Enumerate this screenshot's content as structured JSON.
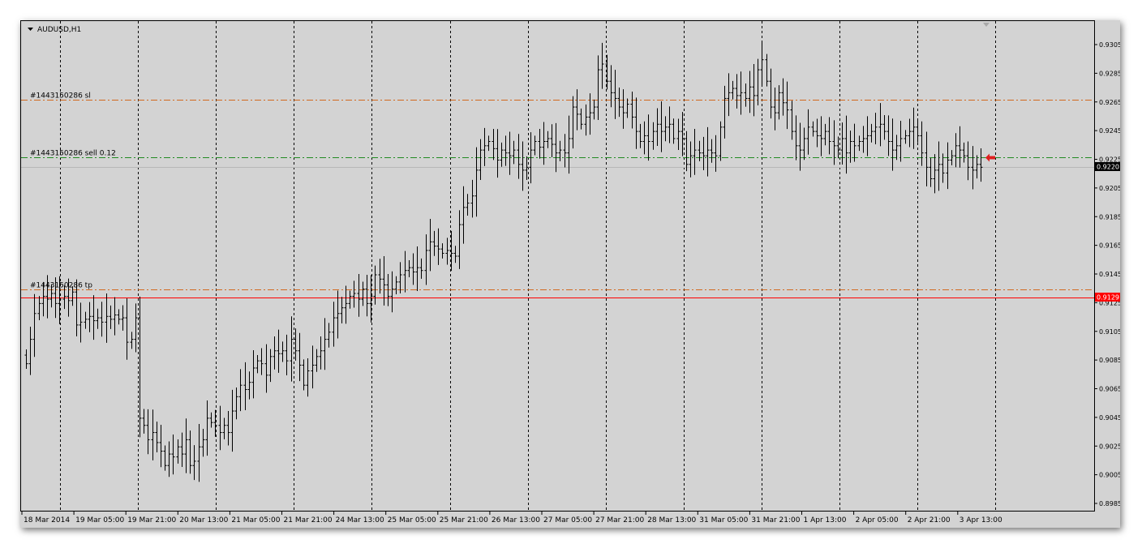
{
  "chart": {
    "symbol_label": "AUDUSD,H1",
    "menu_icon": "triangle-down-icon"
  },
  "price_axis": {
    "ticks": [
      "0.9305",
      "0.9285",
      "0.9265",
      "0.9245",
      "0.9225",
      "0.9205",
      "0.9185",
      "0.9165",
      "0.9145",
      "0.9125",
      "0.9105",
      "0.9085",
      "0.9065",
      "0.9045",
      "0.9025",
      "0.9005",
      "0.8985"
    ],
    "current_price_label": "0.9220",
    "alert_price_label": "0.9129"
  },
  "time_axis": {
    "labels": [
      "18 Mar 2014",
      "19 Mar 05:00",
      "19 Mar 21:00",
      "20 Mar 13:00",
      "21 Mar 05:00",
      "21 Mar 21:00",
      "24 Mar 13:00",
      "25 Mar 05:00",
      "25 Mar 21:00",
      "26 Mar 13:00",
      "27 Mar 05:00",
      "27 Mar 21:00",
      "28 Mar 13:00",
      "31 Mar 05:00",
      "31 Mar 21:00",
      "1 Apr 13:00",
      "2 Apr 05:00",
      "2 Apr 21:00",
      "3 Apr 13:00"
    ]
  },
  "order_lines": {
    "sl": {
      "label": "#1443150286 sl",
      "price": 0.9267,
      "color": "#d2691e"
    },
    "entry": {
      "label": "#1443150286 sell 0.12",
      "price": 0.9227,
      "color": "#228b22"
    },
    "tp": {
      "label": "#1443150286 tp",
      "price": 0.9135,
      "color": "#d2691e"
    }
  },
  "horizontal_lines": {
    "alert_price": 0.9129,
    "alert_color": "#ff0000",
    "bid_price": 0.922
  },
  "colors": {
    "background": "#d3d3d3",
    "bars": "#000000",
    "grid": "#000000",
    "sell_marker": "#ff0000"
  },
  "chart_data": {
    "type": "ohlc-bars",
    "symbol": "AUDUSD",
    "timeframe": "H1",
    "ylim": [
      0.8985,
      0.9305
    ],
    "close_series": [
      0.9083,
      0.91,
      0.9118,
      0.9125,
      0.913,
      0.9128,
      0.9132,
      0.9125,
      0.9128,
      0.913,
      0.9127,
      0.9133,
      0.911,
      0.9112,
      0.9114,
      0.9116,
      0.9113,
      0.9115,
      0.9112,
      0.9116,
      0.9114,
      0.9117,
      0.9114,
      0.9115,
      0.9098,
      0.91,
      0.9115,
      0.9045,
      0.904,
      0.903,
      0.9035,
      0.9028,
      0.9022,
      0.9012,
      0.902,
      0.9018,
      0.9025,
      0.902,
      0.903,
      0.9012,
      0.9015,
      0.9025,
      0.903,
      0.9045,
      0.9042,
      0.904,
      0.9035,
      0.904,
      0.9035,
      0.905,
      0.906,
      0.9068,
      0.9065,
      0.907,
      0.908,
      0.9085,
      0.9083,
      0.9075,
      0.9088,
      0.9092,
      0.909,
      0.9092,
      0.9085,
      0.91,
      0.9092,
      0.9082,
      0.9068,
      0.9078,
      0.9082,
      0.9088,
      0.9092,
      0.91,
      0.9105,
      0.9115,
      0.9118,
      0.9122,
      0.9125,
      0.913,
      0.9132,
      0.9128,
      0.9135,
      0.9125,
      0.913,
      0.9145,
      0.9142,
      0.9138,
      0.913,
      0.9135,
      0.914,
      0.9145,
      0.9148,
      0.915,
      0.9147,
      0.915,
      0.9148,
      0.9162,
      0.9168,
      0.9165,
      0.9163,
      0.916,
      0.9162,
      0.916,
      0.9158,
      0.918,
      0.9192,
      0.9195,
      0.92,
      0.9218,
      0.9232,
      0.9235,
      0.9238,
      0.9233,
      0.9225,
      0.9232,
      0.923,
      0.9228,
      0.9232,
      0.9222,
      0.9218,
      0.922,
      0.9232,
      0.9238,
      0.9234,
      0.9238,
      0.924,
      0.9236,
      0.923,
      0.9232,
      0.923,
      0.924,
      0.9262,
      0.9257,
      0.925,
      0.9255,
      0.9258,
      0.9262,
      0.9288,
      0.9292,
      0.928,
      0.9272,
      0.9268,
      0.9262,
      0.9258,
      0.9264,
      0.9255,
      0.9245,
      0.9238,
      0.9242,
      0.9238,
      0.9245,
      0.925,
      0.9245,
      0.9248,
      0.925,
      0.924,
      0.9245,
      0.924,
      0.9222,
      0.9228,
      0.9232,
      0.923,
      0.9228,
      0.9232,
      0.923,
      0.9228,
      0.9248,
      0.9268,
      0.9272,
      0.9275,
      0.927,
      0.9272,
      0.9268,
      0.9276,
      0.927,
      0.9288,
      0.9295,
      0.928,
      0.9262,
      0.9258,
      0.9272,
      0.9265,
      0.926,
      0.9245,
      0.9235,
      0.9232,
      0.924,
      0.9248,
      0.9245,
      0.9242,
      0.924,
      0.9245,
      0.9238,
      0.9235,
      0.9232,
      0.924,
      0.923,
      0.9238,
      0.9235,
      0.9238,
      0.924,
      0.9242,
      0.9245,
      0.9248,
      0.925,
      0.9245,
      0.9238,
      0.9232,
      0.9235,
      0.924,
      0.9242,
      0.9245,
      0.9248,
      0.9242,
      0.923,
      0.922,
      0.9212,
      0.9218,
      0.9222,
      0.9216,
      0.9225,
      0.9228,
      0.9235,
      0.9232,
      0.9228,
      0.922,
      0.9218,
      0.9222,
      0.922
    ]
  }
}
